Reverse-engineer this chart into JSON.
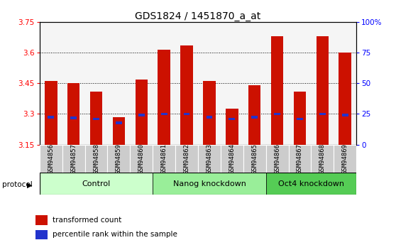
{
  "title": "GDS1824 / 1451870_a_at",
  "samples": [
    "GSM94856",
    "GSM94857",
    "GSM94858",
    "GSM94859",
    "GSM94860",
    "GSM94861",
    "GSM94862",
    "GSM94863",
    "GSM94864",
    "GSM94865",
    "GSM94866",
    "GSM94867",
    "GSM94868",
    "GSM94869"
  ],
  "red_values": [
    3.46,
    3.45,
    3.41,
    3.285,
    3.47,
    3.615,
    3.635,
    3.46,
    3.325,
    3.44,
    3.68,
    3.41,
    3.68,
    3.6
  ],
  "blue_values": [
    3.285,
    3.28,
    3.275,
    3.255,
    3.295,
    3.3,
    3.3,
    3.285,
    3.275,
    3.285,
    3.3,
    3.275,
    3.3,
    3.295
  ],
  "ymin": 3.15,
  "ymax": 3.75,
  "y_ticks": [
    3.15,
    3.3,
    3.45,
    3.6,
    3.75
  ],
  "y_tick_labels": [
    "3.15",
    "3.3",
    "3.45",
    "3.6",
    "3.75"
  ],
  "right_y_ticks": [
    3.15,
    3.3,
    3.45,
    3.6,
    3.75
  ],
  "right_y_tick_labels": [
    "0",
    "25",
    "50",
    "75",
    "100%"
  ],
  "groups": [
    {
      "label": "Control",
      "start": 0,
      "end": 4,
      "color": "#ccffcc"
    },
    {
      "label": "Nanog knockdown",
      "start": 5,
      "end": 9,
      "color": "#99ee99"
    },
    {
      "label": "Oct4 knockdown",
      "start": 10,
      "end": 13,
      "color": "#55cc55"
    }
  ],
  "bar_color": "#cc1100",
  "blue_color": "#2233cc",
  "bar_width": 0.55,
  "plot_bg_color": "#ffffff",
  "title_fontsize": 10,
  "tick_fontsize": 7.5,
  "label_fontsize": 6.5,
  "legend_fontsize": 7.5
}
